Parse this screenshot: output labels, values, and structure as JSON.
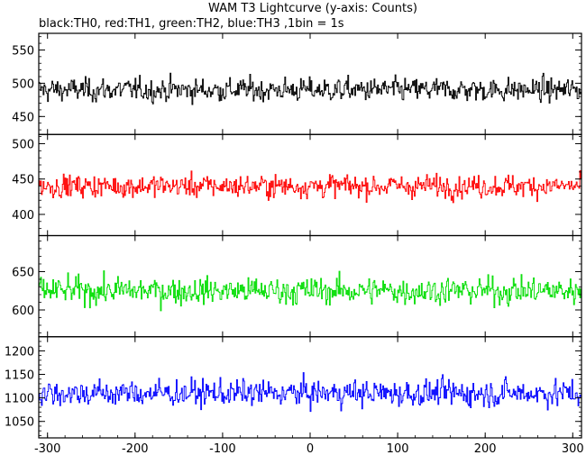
{
  "title": "WAM T3 Lightcurve (y-axis: Counts)",
  "subtitle": "black:TH0, red:TH1, green:TH2, blue:TH3 ,1bin = 1s",
  "chart_data": {
    "type": "line",
    "title": "WAM T3 Lightcurve (y-axis: Counts)",
    "subtitle": "black:TH0, red:TH1, green:TH2, blue:TH3 ,1bin = 1s",
    "xlim": [
      -310,
      310
    ],
    "x_ticks": [
      -300,
      -200,
      -100,
      0,
      100,
      200,
      300
    ],
    "x_tick_labels": [
      "-300",
      "-200",
      "-100",
      "0",
      "100",
      "200",
      "300"
    ],
    "grid": false,
    "series": [
      {
        "name": "TH0",
        "color": "#000000",
        "mean": 490,
        "spread": 22,
        "ylim": [
          423,
          575
        ],
        "y_ticks": [
          450,
          500,
          550
        ],
        "y_tick_labels": [
          "450",
          "500",
          "550"
        ]
      },
      {
        "name": "TH1",
        "color": "#ff0000",
        "mean": 440,
        "spread": 20,
        "ylim": [
          370,
          513
        ],
        "y_ticks": [
          400,
          450,
          500
        ],
        "y_tick_labels": [
          "400",
          "450",
          "500"
        ]
      },
      {
        "name": "TH2",
        "color": "#00dd00",
        "mean": 625,
        "spread": 22,
        "ylim": [
          565,
          697
        ],
        "y_ticks": [
          600,
          650
        ],
        "y_tick_labels": [
          "600",
          "650"
        ]
      },
      {
        "name": "TH3",
        "color": "#0000ff",
        "mean": 1110,
        "spread": 35,
        "ylim": [
          1015,
          1230
        ],
        "y_ticks": [
          1050,
          1100,
          1150,
          1200
        ],
        "y_tick_labels": [
          "1050",
          "1100",
          "1150",
          "1200"
        ]
      }
    ]
  }
}
